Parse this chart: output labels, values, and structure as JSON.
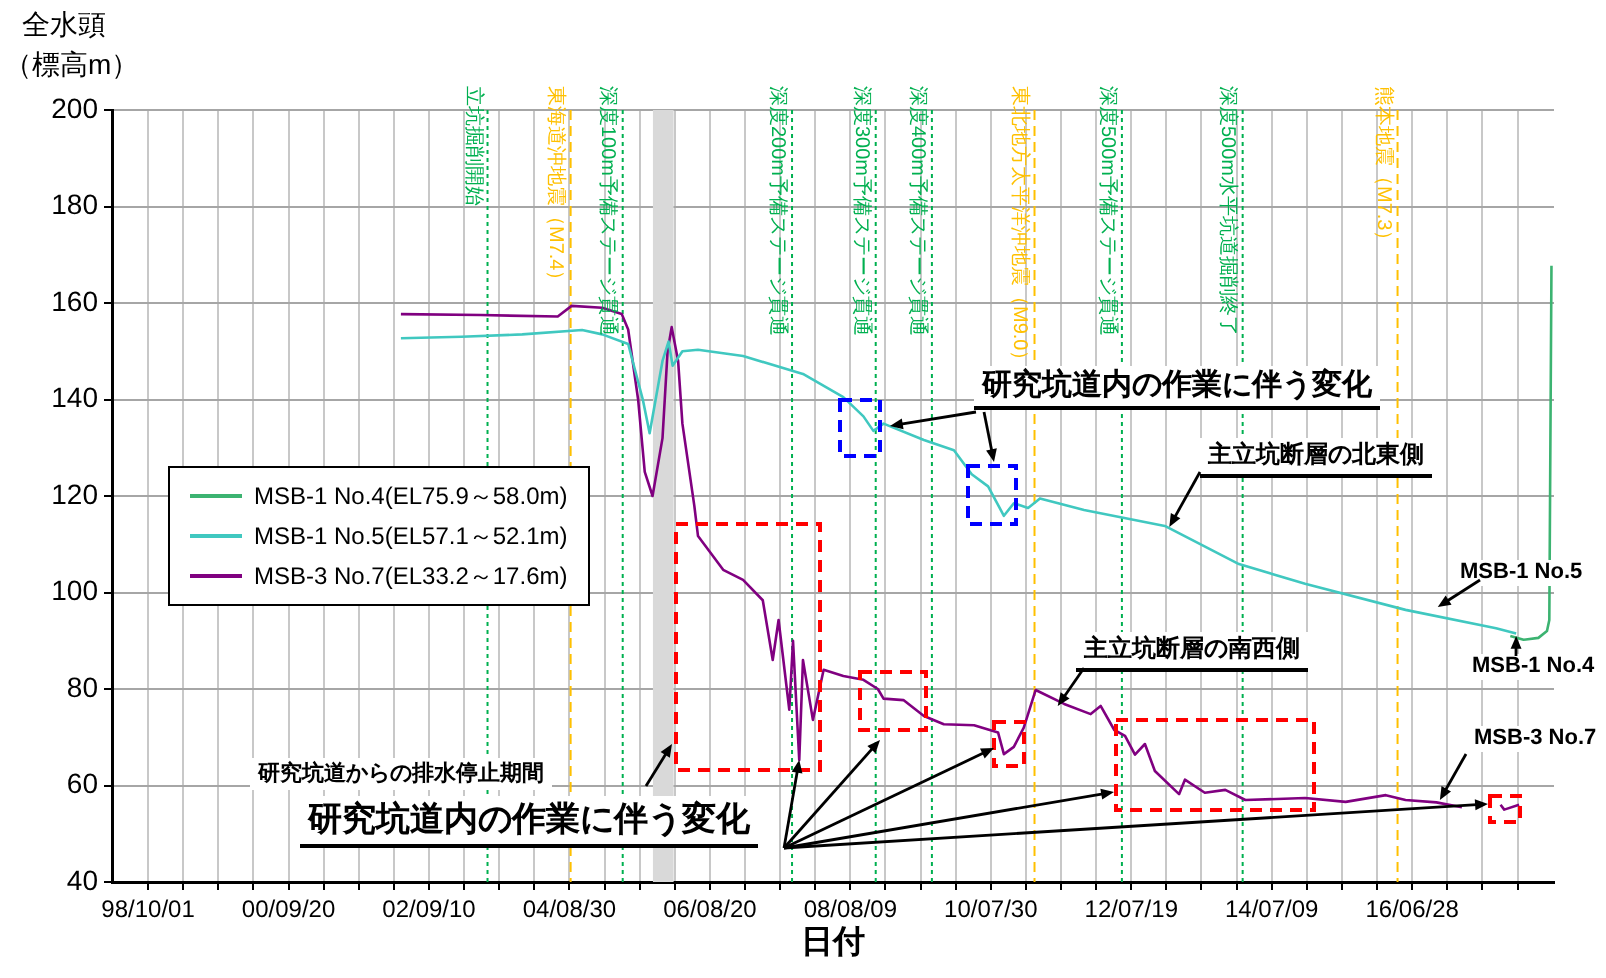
{
  "chart_data": {
    "type": "line",
    "xlabel": "日付",
    "ylabel": "全水頭（標高m）",
    "xlim": [
      "1998-03-30",
      "2018-06-25"
    ],
    "ylim": [
      40,
      200
    ],
    "yticks": [
      40,
      60,
      80,
      100,
      120,
      140,
      160,
      180,
      200
    ],
    "xticks": [
      {
        "value": "1998-10-01",
        "label": "98/10/01"
      },
      {
        "value": "1999-03-30",
        "label": null
      },
      {
        "value": "1999-09-26",
        "label": null
      },
      {
        "value": "2000-03-24",
        "label": null
      },
      {
        "value": "2000-09-20",
        "label": "00/09/20"
      },
      {
        "value": "2001-03-19",
        "label": null
      },
      {
        "value": "2001-09-15",
        "label": null
      },
      {
        "value": "2002-03-14",
        "label": null
      },
      {
        "value": "2002-09-10",
        "label": "02/09/10"
      },
      {
        "value": "2003-03-09",
        "label": null
      },
      {
        "value": "2003-09-05",
        "label": null
      },
      {
        "value": "2004-03-03",
        "label": null
      },
      {
        "value": "2004-08-30",
        "label": "04/08/30"
      },
      {
        "value": "2005-02-26",
        "label": null
      },
      {
        "value": "2005-08-25",
        "label": null
      },
      {
        "value": "2006-02-21",
        "label": null
      },
      {
        "value": "2006-08-20",
        "label": "06/08/20"
      },
      {
        "value": "2007-02-16",
        "label": null
      },
      {
        "value": "2007-08-15",
        "label": null
      },
      {
        "value": "2008-02-11",
        "label": null
      },
      {
        "value": "2008-08-09",
        "label": "08/08/09"
      },
      {
        "value": "2009-02-05",
        "label": null
      },
      {
        "value": "2009-08-04",
        "label": null
      },
      {
        "value": "2010-01-31",
        "label": null
      },
      {
        "value": "2010-07-30",
        "label": "10/07/30"
      },
      {
        "value": "2011-01-26",
        "label": null
      },
      {
        "value": "2011-07-25",
        "label": null
      },
      {
        "value": "2012-01-21",
        "label": null
      },
      {
        "value": "2012-07-19",
        "label": "12/07/19"
      },
      {
        "value": "2013-01-15",
        "label": null
      },
      {
        "value": "2013-07-14",
        "label": null
      },
      {
        "value": "2014-01-10",
        "label": null
      },
      {
        "value": "2014-07-09",
        "label": "14/07/09"
      },
      {
        "value": "2015-01-05",
        "label": null
      },
      {
        "value": "2015-07-04",
        "label": null
      },
      {
        "value": "2015-12-31",
        "label": null
      },
      {
        "value": "2016-06-28",
        "label": "16/06/28"
      },
      {
        "value": "2016-12-25",
        "label": null
      },
      {
        "value": "2017-06-23",
        "label": null
      },
      {
        "value": "2017-12-20",
        "label": null
      }
    ],
    "grid": true,
    "legend": "left",
    "marker": "none",
    "line_style": "solid",
    "series": [
      {
        "name": "MSB-1 No.4(EL75.9～58.0m)",
        "color": "#3cb371",
        "x": [
          "2017-11-13",
          "2018-01-20",
          "2018-04-06",
          "2018-05-20",
          "2018-06-01",
          "2018-06-12"
        ],
        "values": [
          91.0,
          90.2,
          90.6,
          92,
          94.3,
          167.7
        ]
      },
      {
        "name": "MSB-1 No.5(EL57.1～52.1m)",
        "color": "#40c8c0",
        "x": [
          "2002-04-19",
          "2003-02-24",
          "2004-01-01",
          "2004-11-03",
          "2005-02-14",
          "2005-06-27",
          "2005-09-10",
          "2005-10-15",
          "2005-12-20",
          "2006-01-20",
          "2006-02-10",
          "2006-04-01",
          "2006-06-20",
          "2007-02-06",
          "2007-12-10",
          "2008-07-04",
          "2008-10-15",
          "2008-12-05",
          "2009-01-26",
          "2009-08-21",
          "2010-01-22",
          "2010-04-23",
          "2010-07-16",
          "2010-10-05",
          "2010-11-25",
          "2011-02-06",
          "2011-04-08",
          "2011-11-20",
          "2013-01-07",
          "2014-01-22",
          "2014-12-27",
          "2016-05-25",
          "2017-09-01",
          "2017-12-13"
        ],
        "values": [
          152.7,
          153.0,
          153.5,
          154.4,
          153.5,
          151.5,
          140,
          133,
          148,
          152,
          147,
          150,
          150.3,
          149,
          145.3,
          140.5,
          136.5,
          133.5,
          135,
          131.6,
          129.5,
          124.5,
          122,
          115.9,
          118.5,
          117.5,
          119.5,
          117.1,
          113.8,
          105.9,
          101.8,
          96.4,
          92.6,
          91.5
        ]
      },
      {
        "name": "MSB-3 No.7(EL33.2～17.6m)",
        "color": "#800080",
        "x": [
          "2002-04-19",
          "2003-06-01",
          "2004-07-01",
          "2004-09-10",
          "2005-02-14",
          "2005-05-25",
          "2005-06-27",
          "2005-08-17",
          "2005-09-20",
          "2005-10-30",
          "2005-12-20",
          "2006-01-15",
          "2006-02-05",
          "2006-03-10",
          "2006-04-01",
          "2006-06-01",
          "2006-06-20",
          "2006-10-27",
          "2007-02-06",
          "2007-05-18",
          "2007-07-08",
          "2007-08-07",
          "2007-10-01",
          "2007-10-20",
          "2007-11-21",
          "2007-12-10",
          "2008-01-30",
          "2008-03-25",
          "2008-07-04",
          "2008-10-15",
          "2008-12-28",
          "2009-01-26",
          "2009-05-08",
          "2009-08-21",
          "2009-12-01",
          "2010-05-05",
          "2010-09-05",
          "2010-10-05",
          "2010-11-25",
          "2011-01-15",
          "2011-03-17",
          "2011-08-10",
          "2011-12-24",
          "2012-02-13",
          "2012-04-23",
          "2012-06-17",
          "2012-08-07",
          "2012-09-27",
          "2012-11-17",
          "2013-03-21",
          "2013-04-20",
          "2013-07-31",
          "2013-11-13",
          "2014-02-24",
          "2014-12-27",
          "2015-07-23",
          "2016-02-14",
          "2016-05-25",
          "2016-10-30",
          "2017-03-10",
          "2017-06-01",
          "2017-09-24",
          "2017-10-13",
          "2017-12-28"
        ],
        "values": [
          157.7,
          157.5,
          157.2,
          159.4,
          159.0,
          157.7,
          154.5,
          140,
          125,
          120,
          132,
          150,
          155,
          148,
          135,
          118,
          111.7,
          104.7,
          102.6,
          98.4,
          86,
          94.3,
          75.7,
          90,
          65.3,
          86,
          73.6,
          84,
          82.7,
          81.9,
          80,
          78,
          77.7,
          74.4,
          72.7,
          72.5,
          71,
          66.5,
          68,
          72,
          79.8,
          76.9,
          74.8,
          76.5,
          71.5,
          70.3,
          66.4,
          68.6,
          63,
          58.2,
          61.2,
          58.5,
          59.1,
          57,
          57.4,
          56.6,
          58,
          57,
          56.5,
          55.5,
          null,
          56,
          55,
          56
        ]
      }
    ],
    "bands": [
      {
        "axis": "x",
        "from": "2005-11-01",
        "to": "2006-02-15",
        "color": "#d9d9d9"
      }
    ],
    "ref_lines": [
      {
        "axis": "x",
        "value": "2003-07-07",
        "label": "立坑掘削開始",
        "color": "#00b050",
        "line_style": "dotted"
      },
      {
        "axis": "x",
        "value": "2004-09-05",
        "label": "東海道沖地震（M7.4）",
        "color": "#ffc000",
        "line_style": "dashed"
      },
      {
        "axis": "x",
        "value": "2005-05-30",
        "label": "深度100m予備ステージ貫通",
        "color": "#00b050",
        "line_style": "dotted"
      },
      {
        "axis": "x",
        "value": "2007-10-15",
        "label": "深度200m予備ステージ貫通",
        "color": "#00b050",
        "line_style": "dotted"
      },
      {
        "axis": "x",
        "value": "2008-12-17",
        "label": "深度300m予備ステージ貫通",
        "color": "#00b050",
        "line_style": "dotted"
      },
      {
        "axis": "x",
        "value": "2009-10-01",
        "label": "深度400m予備ステージ貫通",
        "color": "#00b050",
        "line_style": "dotted"
      },
      {
        "axis": "x",
        "value": "2011-03-11",
        "label": "東北地方太平洋沖地震（M9.0）",
        "color": "#ffc000",
        "line_style": "dashed"
      },
      {
        "axis": "x",
        "value": "2012-06-01",
        "label": "深度500m予備ステージ貫通",
        "color": "#00b050",
        "line_style": "dotted"
      },
      {
        "axis": "x",
        "value": "2014-02-10",
        "label": "深度500m水平坑道掘削終了",
        "color": "#00b050",
        "line_style": "dotted"
      },
      {
        "axis": "x",
        "value": "2016-04-14",
        "label": "熊本地震（M7.3）",
        "color": "#ffc000",
        "line_style": "dashed"
      }
    ],
    "annotations": [
      {
        "text": "研究坑道内の作業に伴う変化",
        "x": "2009-02-28",
        "y": 134.5
      },
      {
        "text": "主立坑断層の北東側",
        "x": "2013-01-30",
        "y": 113.6
      },
      {
        "text": "主立坑断層の南西側",
        "x": "2011-07-08",
        "y": 76.5
      },
      {
        "text": "MSB-1 No.5",
        "x": "2016-11-06",
        "y": 97
      },
      {
        "text": "MSB-1 No.4",
        "x": "2017-12-13",
        "y": 91
      },
      {
        "text": "MSB-3 No.7",
        "x": "2016-11-17",
        "y": 57
      },
      {
        "text": "研究坑道内の作業に伴う変化",
        "x": "2007-11-21",
        "y": 65.3
      },
      "研究坑道からの排水停止期間"
    ]
  }
}
